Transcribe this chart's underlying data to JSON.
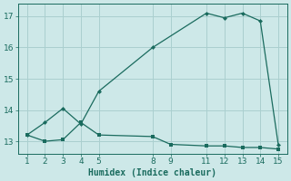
{
  "xlabel": "Humidex (Indice chaleur)",
  "background_color": "#cde8e8",
  "grid_color": "#aacfcf",
  "line_color": "#1a6b5e",
  "x_ticks": [
    1,
    2,
    3,
    4,
    5,
    8,
    9,
    11,
    12,
    13,
    14,
    15
  ],
  "ylim": [
    12.6,
    17.4
  ],
  "xlim": [
    0.5,
    15.5
  ],
  "y_ticks": [
    13,
    14,
    15,
    16,
    17
  ],
  "line1_x": [
    1,
    2,
    3,
    4,
    5,
    8,
    9,
    11,
    12,
    13,
    14,
    15
  ],
  "line1_y": [
    13.2,
    13.0,
    13.05,
    13.6,
    13.2,
    13.15,
    12.9,
    12.85,
    12.85,
    12.8,
    12.8,
    12.75
  ],
  "line2_x": [
    1,
    2,
    3,
    4,
    5,
    8,
    11,
    12,
    13,
    14,
    15
  ],
  "line2_y": [
    13.2,
    13.6,
    14.05,
    13.55,
    14.6,
    16.0,
    17.1,
    16.95,
    17.1,
    16.85,
    12.9
  ]
}
